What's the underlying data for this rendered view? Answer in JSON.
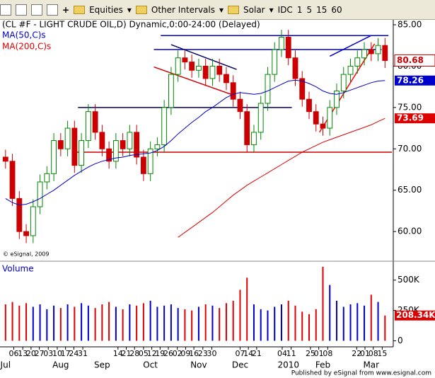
{
  "toolbar": {
    "items": [
      "Equities",
      "Other Intervals",
      "Solar",
      "IDC",
      "1",
      "5",
      "15",
      "60"
    ]
  },
  "chart_data": {
    "type": "candlestick",
    "title": "(CL #F - LIGHT CRUDE OIL,D) Dynamic,0:00-24:00 (Delayed)",
    "watermark": "© eSignal, 2009",
    "footer": "Published by eSignal from www.esignal.com",
    "categories": [
      "Jul",
      null,
      null,
      null,
      null,
      null,
      null,
      null,
      "Aug",
      null,
      null,
      null,
      null,
      null,
      "Sep",
      null,
      null,
      null,
      null,
      null,
      null,
      "Oct",
      null,
      null,
      null,
      null,
      null,
      null,
      "Nov",
      null,
      null,
      null,
      null,
      null,
      "Dec",
      null,
      null,
      null,
      null,
      null,
      null,
      "2010",
      null,
      null,
      null,
      null,
      "Feb",
      null,
      null,
      null,
      null,
      null,
      null,
      "Mar",
      null,
      null
    ],
    "xticks": [
      {
        "value": 1.2,
        "label": "06"
      },
      {
        "value": 2.5,
        "label": "13"
      },
      {
        "value": 3.7,
        "label": "20"
      },
      {
        "value": 4.9,
        "label": "27"
      },
      {
        "value": 6.2,
        "label": "03"
      },
      {
        "value": 7.5,
        "label": "10"
      },
      {
        "value": 8.7,
        "label": "17"
      },
      {
        "value": 9.9,
        "label": "24"
      },
      {
        "value": 11.2,
        "label": "31"
      },
      {
        "value": 16.3,
        "label": "14"
      },
      {
        "value": 17.5,
        "label": "21"
      },
      {
        "value": 18.7,
        "label": "28"
      },
      {
        "value": 20,
        "label": "05"
      },
      {
        "value": 21.2,
        "label": "12"
      },
      {
        "value": 22.4,
        "label": "19"
      },
      {
        "value": 23.6,
        "label": "26"
      },
      {
        "value": 24.9,
        "label": "02"
      },
      {
        "value": 26.1,
        "label": "09"
      },
      {
        "value": 27.3,
        "label": "16"
      },
      {
        "value": 28.6,
        "label": "23"
      },
      {
        "value": 29.9,
        "label": "30"
      },
      {
        "value": 34,
        "label": "07"
      },
      {
        "value": 35.2,
        "label": "14"
      },
      {
        "value": 36.4,
        "label": "21"
      },
      {
        "value": 40.1,
        "label": "04"
      },
      {
        "value": 41.4,
        "label": "11"
      },
      {
        "value": 44.2,
        "label": "25"
      },
      {
        "value": 45.4,
        "label": "01"
      },
      {
        "value": 46.7,
        "label": "08"
      },
      {
        "value": 50.9,
        "label": "22"
      },
      {
        "value": 52.1,
        "label": "01"
      },
      {
        "value": 53.3,
        "label": "08"
      },
      {
        "value": 54.6,
        "label": "15"
      }
    ],
    "xlim": [
      -0.8,
      56.2
    ],
    "open": [
      69,
      68.5,
      64,
      60,
      59.5,
      63,
      66,
      67,
      71,
      70,
      72.5,
      68,
      71,
      74.5,
      72,
      70,
      68.5,
      71,
      70,
      72,
      69,
      67,
      70,
      70.5,
      75,
      79,
      81,
      80.5,
      79.5,
      80,
      78.5,
      80,
      79,
      78,
      76,
      74.5,
      70.5,
      72,
      75.5,
      79,
      82,
      83.5,
      81,
      78.5,
      76,
      74.5,
      73,
      72.5,
      75,
      77,
      79,
      80,
      81,
      82,
      81.5,
      82.5
    ],
    "high": [
      69.9,
      69.4,
      64.9,
      60.9,
      63.9,
      66.9,
      67.9,
      71.9,
      71.9,
      73.4,
      73.4,
      71.9,
      75.4,
      75.4,
      72.9,
      70.9,
      71.9,
      71.9,
      72.9,
      72.9,
      69.9,
      70.9,
      71.4,
      75.9,
      79.9,
      81.9,
      81.9,
      81.4,
      80.9,
      80.9,
      80.9,
      80.9,
      79.9,
      78.9,
      76.9,
      75.4,
      72.9,
      76.4,
      79.9,
      82.9,
      84.4,
      84.4,
      81.9,
      79.4,
      76.9,
      75.4,
      73.9,
      75.9,
      77.9,
      79.9,
      80.9,
      81.9,
      82.9,
      82.9,
      83.4,
      83.4
    ],
    "low": [
      67.6,
      63.1,
      59.1,
      58.6,
      58.6,
      62.1,
      65.1,
      66.1,
      69.1,
      69.1,
      67.1,
      67.1,
      70.1,
      71.1,
      69.1,
      67.6,
      67.6,
      69.1,
      69.1,
      68.1,
      66.1,
      66.1,
      69.1,
      69.6,
      74.1,
      78.1,
      79.6,
      78.6,
      78.6,
      77.6,
      77.6,
      78.1,
      77.1,
      75.1,
      73.6,
      69.6,
      69.6,
      71.1,
      74.6,
      78.1,
      81.1,
      80.1,
      77.6,
      75.1,
      73.6,
      72.1,
      71.6,
      71.6,
      74.1,
      76.1,
      78.1,
      79.1,
      80.1,
      80.6,
      80.6,
      79.78
    ],
    "close": [
      68.5,
      64,
      60,
      59.5,
      63,
      66,
      67,
      71,
      70,
      72.5,
      68,
      71,
      74.5,
      72,
      70,
      68.5,
      71,
      70,
      72,
      69,
      67,
      70,
      70.5,
      75,
      79,
      81,
      80.5,
      79.5,
      80,
      78.5,
      80,
      79,
      78,
      76,
      74.5,
      70.5,
      72,
      75.5,
      79,
      82,
      83.5,
      81,
      78.5,
      76,
      74.5,
      73,
      72.5,
      75,
      77,
      79,
      80,
      81,
      82,
      81.5,
      82.5,
      80.68
    ],
    "up_color": "#008800",
    "down_color": "#cc0000",
    "ylim": [
      56.5,
      85.6
    ],
    "yticks": [
      {
        "value": 85,
        "label": "85.00"
      },
      {
        "value": 80,
        "label": "80.00"
      },
      {
        "value": 75,
        "label": "75.00"
      },
      {
        "value": 70,
        "label": "70.00"
      },
      {
        "value": 65,
        "label": "65.00"
      },
      {
        "value": 60,
        "label": "60.00"
      }
    ],
    "series": [
      {
        "name": "MA(50,C)s",
        "color": "#0000cc",
        "values": [
          64,
          63.5,
          63.2,
          63.3,
          63.6,
          64,
          64.5,
          65,
          65.6,
          66.2,
          66.8,
          67.3,
          67.8,
          68.2,
          68.5,
          68.7,
          68.9,
          69,
          69.2,
          69.3,
          69.4,
          69.5,
          69.8,
          70.3,
          71,
          71.8,
          72.5,
          73.2,
          73.8,
          74.5,
          75,
          75.6,
          76.2,
          76.6,
          76.8,
          76.7,
          76.6,
          76.7,
          77,
          77.4,
          77.8,
          78.2,
          78.3,
          78.2,
          77.9,
          77.5,
          77,
          76.7,
          76.6,
          76.8,
          77.1,
          77.4,
          77.7,
          78,
          78.2,
          78.26
        ]
      },
      {
        "name": "MA(200,C)s",
        "color": "#dd0000",
        "values": [
          null,
          null,
          null,
          null,
          null,
          null,
          null,
          null,
          null,
          null,
          null,
          null,
          null,
          null,
          null,
          null,
          null,
          null,
          null,
          null,
          null,
          null,
          null,
          null,
          null,
          59.3,
          59.9,
          60.5,
          61.1,
          61.7,
          62.3,
          63,
          63.7,
          64.4,
          65,
          65.6,
          66.1,
          66.6,
          67.1,
          67.6,
          68.1,
          68.6,
          69.1,
          69.6,
          70,
          70.4,
          70.8,
          71.1,
          71.4,
          71.7,
          72,
          72.3,
          72.6,
          72.9,
          73.3,
          73.69
        ]
      }
    ],
    "trendlines": [
      {
        "color": "#0000cc",
        "x": [
          22.5,
          55.5
        ],
        "y": [
          83.7,
          83.7
        ]
      },
      {
        "color": "#0000cc",
        "x": [
          21.5,
          54.5
        ],
        "y": [
          82,
          82
        ]
      },
      {
        "color": "#000066",
        "x": [
          10.5,
          41.5
        ],
        "y": [
          75,
          75
        ]
      },
      {
        "color": "#cc0000",
        "x": [
          10,
          56
        ],
        "y": [
          69.6,
          69.6
        ]
      },
      {
        "color": "#000066",
        "x": [
          24,
          33.5
        ],
        "y": [
          82.6,
          79.6
        ]
      },
      {
        "color": "#cc0000",
        "x": [
          21.5,
          33
        ],
        "y": [
          79.9,
          76.5
        ]
      },
      {
        "color": "#ff0000",
        "x": [
          45.5,
          53.5
        ],
        "y": [
          72,
          82.7
        ]
      },
      {
        "color": "#0000cc",
        "x": [
          47,
          53
        ],
        "y": [
          81.2,
          83.7
        ]
      }
    ],
    "volume": {
      "title": "Volume",
      "up_color": "#0000cc",
      "down_color": "#dd0000",
      "values": [
        300000,
        320000,
        290000,
        310000,
        280000,
        300000,
        260000,
        290000,
        270000,
        300000,
        280000,
        310000,
        290000,
        270000,
        300000,
        320000,
        280000,
        260000,
        300000,
        290000,
        310000,
        330000,
        280000,
        290000,
        300000,
        270000,
        260000,
        250000,
        280000,
        300000,
        290000,
        270000,
        310000,
        330000,
        420000,
        520000,
        300000,
        260000,
        250000,
        280000,
        300000,
        330000,
        290000,
        240000,
        220000,
        260000,
        610000,
        460000,
        330000,
        280000,
        300000,
        310000,
        290000,
        380000,
        320000,
        208340
      ],
      "value_labels": [
        null,
        null,
        null,
        null,
        null,
        null,
        null,
        null,
        null,
        null,
        null,
        null,
        null,
        null,
        null,
        null,
        null,
        null,
        null,
        null,
        null,
        null,
        null,
        null,
        null,
        null,
        null,
        null,
        null,
        null,
        null,
        null,
        null,
        null,
        null,
        null,
        null,
        null,
        null,
        null,
        null,
        null,
        null,
        null,
        null,
        null,
        null,
        null,
        null,
        null,
        null,
        null,
        null,
        null,
        null,
        "208.34K"
      ],
      "ylim": [
        -50000,
        650000
      ],
      "yticks": [
        {
          "value": 500000,
          "label": "500K"
        },
        {
          "value": 250000,
          "label": "250K"
        },
        {
          "value": 0,
          "label": "0"
        }
      ]
    }
  }
}
